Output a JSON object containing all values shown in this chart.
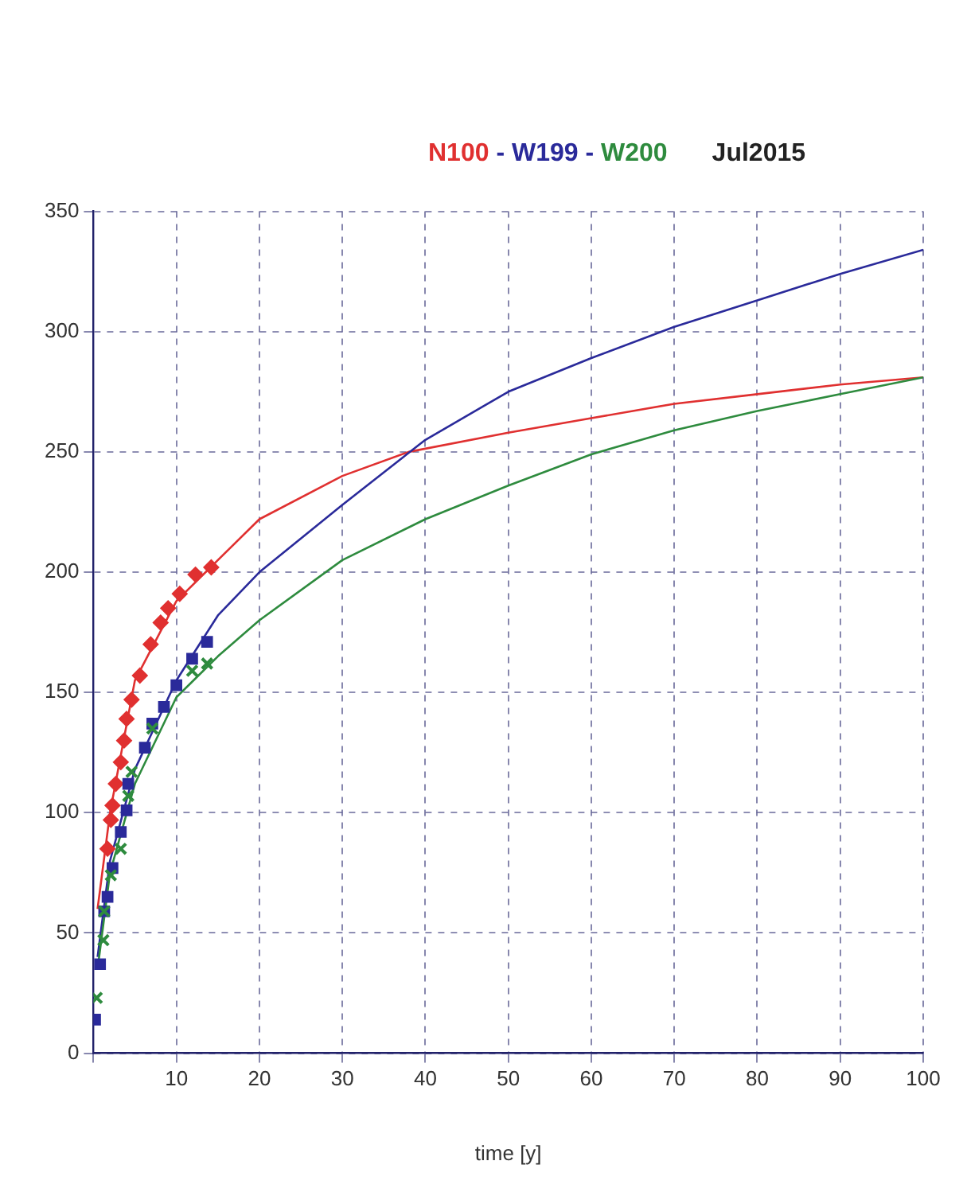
{
  "chart_data": {
    "type": "line",
    "title": "Jul2015",
    "xlabel": "time [y]",
    "xlim": [
      0,
      100
    ],
    "xticks": [
      {
        "value": 0,
        "label": null
      },
      10,
      20,
      30,
      40,
      50,
      60,
      70,
      80,
      90,
      100
    ],
    "ylim": [
      0,
      350
    ],
    "yticks": [
      0,
      50,
      100,
      150,
      200,
      250,
      300,
      350
    ],
    "grid": true,
    "legend": "top",
    "annotations": [
      "-",
      "-"
    ],
    "line_style": "solid",
    "series": [
      {
        "name": "N100",
        "marker": "none",
        "color": "#e03030",
        "x": [
          0.5,
          2,
          5,
          10,
          15,
          20,
          30,
          38,
          50,
          60,
          70,
          80,
          90,
          100
        ],
        "values": [
          60,
          100,
          155,
          188,
          205,
          222,
          240,
          250,
          258,
          264,
          270,
          274,
          278,
          281
        ]
      },
      {
        "name": "W199",
        "marker": "none",
        "color": "#2a2a9a",
        "x": [
          0.5,
          2,
          5,
          10,
          15,
          20,
          30,
          40,
          50,
          60,
          70,
          80,
          90,
          100
        ],
        "values": [
          40,
          80,
          118,
          155,
          182,
          200,
          228,
          255,
          275,
          289,
          302,
          313,
          324,
          334
        ]
      },
      {
        "name": "W200",
        "marker": "none",
        "color": "#2e8b3e",
        "x": [
          0.5,
          2,
          5,
          10,
          15,
          20,
          30,
          40,
          50,
          60,
          70,
          80,
          90,
          100
        ],
        "values": [
          35,
          75,
          112,
          148,
          165,
          180,
          205,
          222,
          236,
          249,
          259,
          267,
          274,
          281
        ]
      },
      {
        "type": "scatter",
        "marker": "diamond",
        "color": "#e03030",
        "x": [
          1.7,
          2.1,
          2.3,
          2.7,
          3.3,
          3.7,
          4.0,
          4.6,
          5.6,
          6.9,
          8.1,
          9.0,
          10.4,
          12.3,
          14.2
        ],
        "values": [
          85,
          97,
          103,
          112,
          121,
          130,
          139,
          147,
          157,
          170,
          179,
          185,
          191,
          199,
          202
        ]
      },
      {
        "type": "scatter",
        "marker": "square",
        "color": "#2a2a9a",
        "x": [
          0.2,
          0.8,
          1.3,
          1.7,
          2.3,
          3.3,
          4.0,
          4.2,
          6.2,
          7.1,
          8.5,
          10,
          11.9,
          13.7
        ],
        "values": [
          14,
          37,
          59,
          65,
          77,
          92,
          101,
          112,
          127,
          137,
          144,
          153,
          164,
          171
        ]
      },
      {
        "type": "scatter",
        "marker": "cross",
        "color": "#2e8b3e",
        "x": [
          0.4,
          1.2,
          1.3,
          2.1,
          3.3,
          4.2,
          4.6,
          7.1,
          11.9,
          13.7
        ],
        "values": [
          23,
          47,
          59,
          74,
          85,
          107,
          117,
          135,
          159,
          162
        ]
      }
    ]
  }
}
